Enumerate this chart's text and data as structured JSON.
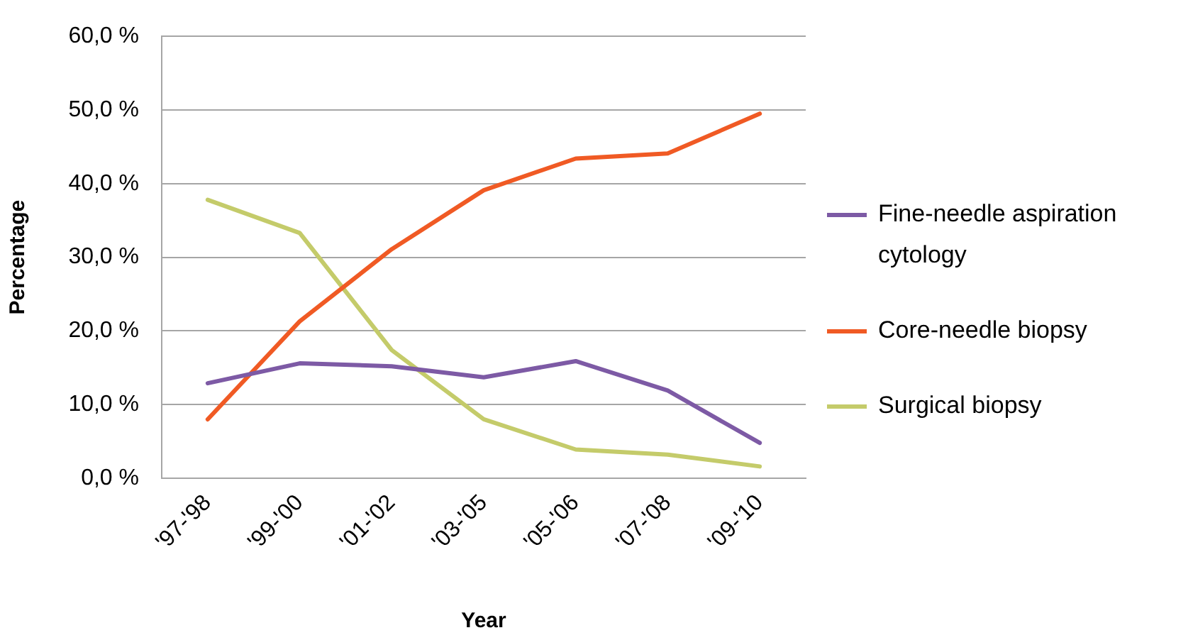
{
  "chart_data": {
    "type": "line",
    "xlabel": "Year",
    "ylabel": "Percentage",
    "categories": [
      "'97-'98",
      "'99-'00",
      "'01-'02",
      "'03-'05",
      "'05-'06",
      "'07-'08",
      "'09-'10"
    ],
    "series": [
      {
        "name": "Fine-needle aspiration cytology",
        "color": "#7d5aa5",
        "values": [
          12.9,
          15.6,
          15.2,
          13.7,
          15.9,
          11.9,
          4.8
        ]
      },
      {
        "name": "Core-needle biopsy",
        "color": "#f05a24",
        "values": [
          8.0,
          21.3,
          31.1,
          39.1,
          43.4,
          44.1,
          49.5
        ]
      },
      {
        "name": "Surgical biopsy",
        "color": "#c4cb6a",
        "values": [
          37.8,
          33.3,
          17.4,
          8.0,
          3.9,
          3.2,
          1.6
        ]
      }
    ],
    "ylim": [
      0,
      60
    ],
    "yticks": [
      {
        "value": 0,
        "label": "0,0 %"
      },
      {
        "value": 10,
        "label": "10,0 %"
      },
      {
        "value": 20,
        "label": "20,0 %"
      },
      {
        "value": 30,
        "label": "30,0 %"
      },
      {
        "value": 40,
        "label": "40,0 %"
      },
      {
        "value": 50,
        "label": "50,0 %"
      },
      {
        "value": 60,
        "label": "60,0 %"
      }
    ],
    "grid": "y",
    "legend": "right",
    "marker": "none",
    "line_style": "solid"
  }
}
